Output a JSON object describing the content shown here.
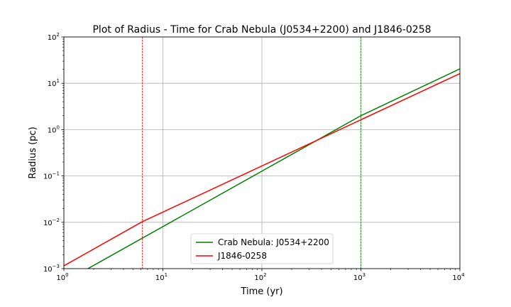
{
  "chart_data": {
    "type": "line",
    "title": "Plot of Radius - Time for Crab Nebula (J0534+2200) and J1846-0258",
    "xlabel": "Time (yr)",
    "ylabel": "Radius (pc)",
    "xscale": "log",
    "yscale": "log",
    "xlim": [
      1,
      10000
    ],
    "ylim": [
      0.001,
      100
    ],
    "grid": true,
    "legend_position": "lower center",
    "x_ticks": [
      {
        "value": 1,
        "base": "10",
        "exp": "0"
      },
      {
        "value": 10,
        "base": "10",
        "exp": "1"
      },
      {
        "value": 100,
        "base": "10",
        "exp": "2"
      },
      {
        "value": 1000,
        "base": "10",
        "exp": "3"
      },
      {
        "value": 10000,
        "base": "10",
        "exp": "4"
      }
    ],
    "y_ticks": [
      {
        "value": 0.001,
        "base": "10",
        "exp": "−3"
      },
      {
        "value": 0.01,
        "base": "10",
        "exp": "−2"
      },
      {
        "value": 0.1,
        "base": "10",
        "exp": "−1"
      },
      {
        "value": 1,
        "base": "10",
        "exp": "0"
      },
      {
        "value": 10,
        "base": "10",
        "exp": "1"
      },
      {
        "value": 100,
        "base": "10",
        "exp": "2"
      }
    ],
    "series": [
      {
        "name": "Crab Nebula: J0534+2200",
        "color": "#008000",
        "points": [
          [
            1.75,
            0.001
          ],
          [
            1000,
            2.0
          ],
          [
            10000,
            20.5
          ]
        ],
        "vline": {
          "x": 1000,
          "color": "#008000"
        }
      },
      {
        "name": "J1846-0258",
        "color": "#ff0000",
        "points": [
          [
            1,
            0.00115
          ],
          [
            6.2,
            0.0103
          ],
          [
            10000,
            16.2
          ]
        ],
        "vline": {
          "x": 6.2,
          "color": "#ff0000"
        }
      }
    ]
  }
}
